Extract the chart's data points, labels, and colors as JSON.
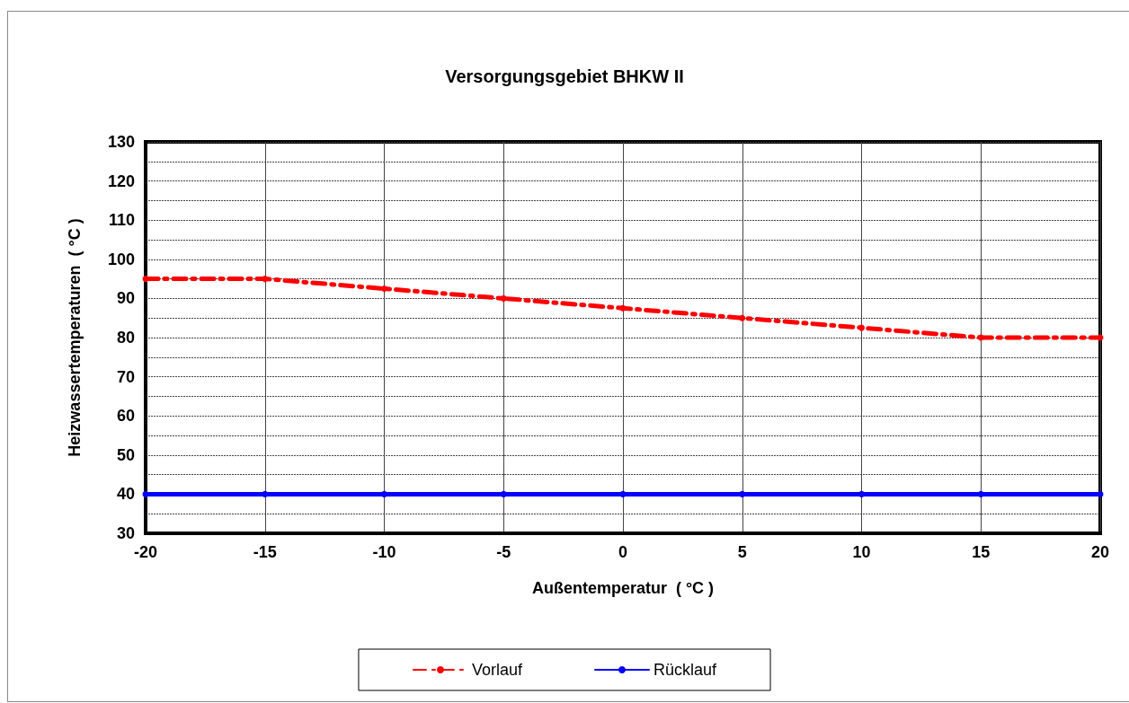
{
  "chart_data": {
    "type": "line",
    "title": "Versorgungsgebiet BHKW II",
    "xlabel": "Außentemperatur  ( °C )",
    "ylabel": "Heizwassertemperaturen  ( °C )",
    "x": [
      -20,
      -15,
      -10,
      -5,
      0,
      5,
      10,
      15,
      20
    ],
    "series": [
      {
        "name": "Vorlauf",
        "color": "#ff0000",
        "line_style": "dashed",
        "values": [
          95,
          95,
          92.5,
          90,
          87.5,
          85,
          82.5,
          80,
          80
        ]
      },
      {
        "name": "Rücklauf",
        "color": "#0000ff",
        "line_style": "solid",
        "values": [
          40,
          40,
          40,
          40,
          40,
          40,
          40,
          40,
          40
        ]
      }
    ],
    "xlim": [
      -20,
      20
    ],
    "xticks": [
      -20,
      -15,
      -10,
      -5,
      0,
      5,
      10,
      15,
      20
    ],
    "ylim": [
      30,
      130
    ],
    "yticks": [
      30,
      {
        "value": 35,
        "label": null
      },
      40,
      {
        "value": 45,
        "label": null
      },
      50,
      {
        "value": 55,
        "label": null
      },
      60,
      {
        "value": 65,
        "label": null
      },
      70,
      {
        "value": 75,
        "label": null
      },
      80,
      {
        "value": 85,
        "label": null
      },
      90,
      {
        "value": 95,
        "label": null
      },
      100,
      {
        "value": 105,
        "label": null
      },
      110,
      {
        "value": 115,
        "label": null
      },
      120,
      {
        "value": 125,
        "label": null
      },
      130
    ],
    "grid": true,
    "legend": "bottom",
    "marker": "circle"
  }
}
